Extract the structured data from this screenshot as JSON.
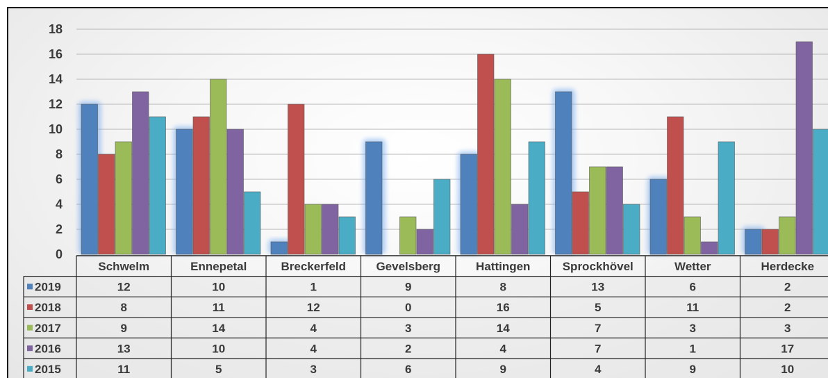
{
  "chart_data": {
    "type": "bar",
    "categories": [
      "Schwelm",
      "Ennepetal",
      "Breckerfeld",
      "Gevelsberg",
      "Hattingen",
      "Sprockhövel",
      "Wetter",
      "Herdecke"
    ],
    "ylim": [
      0,
      18
    ],
    "yticks": [
      0,
      2,
      4,
      6,
      8,
      10,
      12,
      14,
      16,
      18
    ],
    "grid": true,
    "legend": "data-table-left",
    "series": [
      {
        "name": "2019",
        "color": "#4f81bd",
        "values": [
          12,
          10,
          1,
          9,
          8,
          13,
          6,
          2
        ]
      },
      {
        "name": "2018",
        "color": "#c0504d",
        "values": [
          8,
          11,
          12,
          0,
          16,
          5,
          11,
          2
        ]
      },
      {
        "name": "2017",
        "color": "#9bbb59",
        "values": [
          9,
          14,
          4,
          3,
          14,
          7,
          3,
          3
        ]
      },
      {
        "name": "2016",
        "color": "#8064a2",
        "values": [
          13,
          10,
          4,
          2,
          4,
          7,
          1,
          17
        ]
      },
      {
        "name": "2015",
        "color": "#4bacc6",
        "values": [
          11,
          5,
          3,
          6,
          9,
          4,
          9,
          10
        ]
      }
    ],
    "highlighted_series": "2019"
  }
}
